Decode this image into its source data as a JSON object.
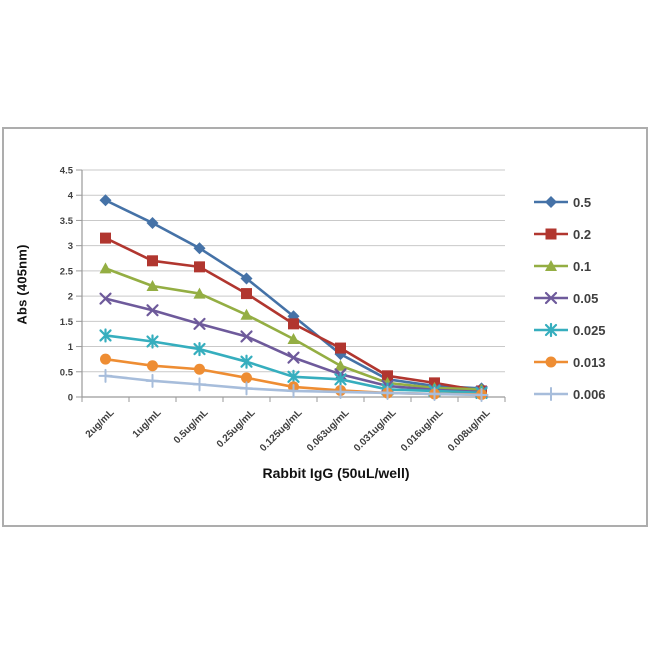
{
  "chart_data": {
    "type": "line",
    "title": "",
    "xlabel": "Rabbit IgG (50uL/well)",
    "ylabel": "Abs (405nm)",
    "ylim": [
      0,
      4.5
    ],
    "ytick_step": 0.5,
    "ytick_labels": [
      "0",
      "0.5",
      "1",
      "1.5",
      "2",
      "2.5",
      "3",
      "3.5",
      "4",
      "4.5"
    ],
    "grid": "horizontal",
    "legend_position": "right",
    "categories": [
      "2ug/mL",
      "1ug/mL",
      "0.5ug/mL",
      "0.25ug/mL",
      "0.125ug/mL",
      "0.063ug/mL",
      "0.031ug/mL",
      "0.016ug/mL",
      "0.008ug/mL"
    ],
    "series": [
      {
        "name": "0.5",
        "marker": "diamond",
        "color": "#4572A7",
        "values": [
          3.9,
          3.45,
          2.95,
          2.35,
          1.6,
          0.85,
          0.35,
          0.22,
          0.17
        ]
      },
      {
        "name": "0.2",
        "marker": "square",
        "color": "#B1362F",
        "values": [
          3.15,
          2.7,
          2.58,
          2.05,
          1.45,
          0.97,
          0.42,
          0.28,
          0.12
        ]
      },
      {
        "name": "0.1",
        "marker": "triangle",
        "color": "#94AE43",
        "values": [
          2.55,
          2.2,
          2.05,
          1.63,
          1.15,
          0.62,
          0.28,
          0.18,
          0.15
        ]
      },
      {
        "name": "0.05",
        "marker": "x",
        "color": "#6E5A9B",
        "values": [
          1.95,
          1.72,
          1.45,
          1.2,
          0.78,
          0.45,
          0.22,
          0.14,
          0.1
        ]
      },
      {
        "name": "0.025",
        "marker": "asterisk",
        "color": "#36AEBE",
        "values": [
          1.22,
          1.1,
          0.95,
          0.7,
          0.4,
          0.35,
          0.15,
          0.12,
          0.08
        ]
      },
      {
        "name": "0.013",
        "marker": "circle",
        "color": "#EE8D33",
        "values": [
          0.75,
          0.62,
          0.55,
          0.38,
          0.2,
          0.13,
          0.08,
          0.06,
          0.05
        ]
      },
      {
        "name": "0.006",
        "marker": "plus",
        "color": "#A7BDDB",
        "values": [
          0.42,
          0.32,
          0.25,
          0.17,
          0.12,
          0.1,
          0.08,
          0.06,
          0.04
        ]
      }
    ],
    "style": {
      "frame_border": "#adadad",
      "gridline": "#c9c9c9",
      "axis": "#9a9a9a",
      "tick_text": "#3f3f3f"
    }
  }
}
